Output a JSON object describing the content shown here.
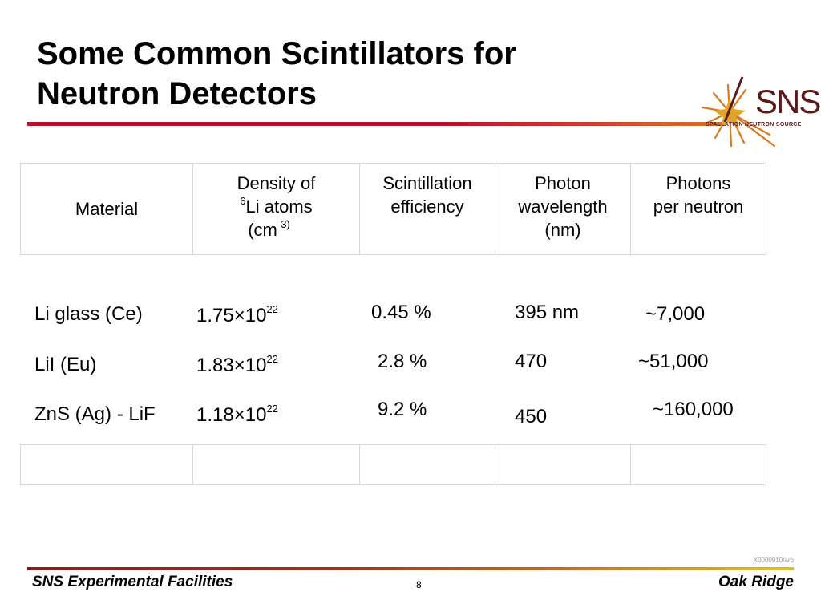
{
  "title": {
    "line1": "Some Common Scintillators for",
    "line2": "Neutron Detectors"
  },
  "logo": {
    "text": "SNS",
    "subtitle": "SPALLATION NEUTRON SOURCE",
    "colors": {
      "star": "#e0a526",
      "rays": "#d9781f",
      "text": "#5a1a1a"
    }
  },
  "table": {
    "headers": {
      "material": "Material",
      "density_line1": "Density of",
      "density_sup": "6",
      "density_line2": "Li atoms",
      "density_unit_pre": "(cm",
      "density_unit_sup": "-3)",
      "efficiency_line1": "Scintillation",
      "efficiency_line2": "efficiency",
      "wavelength_line1": "Photon",
      "wavelength_line2": "wavelength",
      "wavelength_line3": "(nm)",
      "photons_line1": "Photons",
      "photons_line2": "per neutron"
    },
    "rows": [
      {
        "material": "Li glass (Ce)",
        "density_mant": "1.75",
        "density_times": "×",
        "density_base": "10",
        "density_exp": "22",
        "efficiency": "0.45 %",
        "wavelength": "395 nm",
        "photons": "~7,000"
      },
      {
        "material": "LiI (Eu)",
        "density_mant": "1.83",
        "density_times": "×",
        "density_base": "10",
        "density_exp": "22",
        "efficiency": "2.8 %",
        "wavelength": "470",
        "photons": "~51,000"
      },
      {
        "material": "ZnS (Ag) - LiF",
        "density_mant": "1.18",
        "density_times": "×",
        "density_base": "10",
        "density_exp": "22",
        "efficiency": "9.2 %",
        "wavelength": "450",
        "photons": "~160,000"
      }
    ]
  },
  "footer": {
    "left": "SNS Experimental Facilities",
    "page": "8",
    "right": "Oak Ridge",
    "code": "X0000910/arb"
  },
  "colors": {
    "title_rule": "#b5142b",
    "table_border": "#d9d9d9"
  }
}
